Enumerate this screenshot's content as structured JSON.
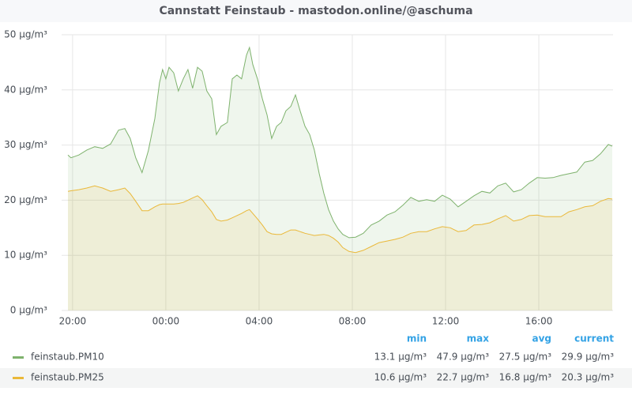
{
  "chart_data": {
    "type": "line",
    "title": "Cannstatt Feinstaub - mastodon.online/@aschuma",
    "x": [
      19.8,
      19.93,
      20.27,
      20.61,
      20.95,
      21.29,
      21.63,
      21.97,
      22.24,
      22.47,
      22.71,
      22.98,
      23.25,
      23.53,
      23.73,
      23.86,
      24.0,
      24.14,
      24.34,
      24.54,
      24.75,
      24.95,
      25.15,
      25.36,
      25.56,
      25.76,
      25.97,
      26.17,
      26.37,
      26.64,
      26.85,
      27.05,
      27.25,
      27.46,
      27.59,
      27.73,
      27.93,
      28.14,
      28.34,
      28.54,
      28.75,
      28.95,
      29.15,
      29.36,
      29.56,
      29.76,
      29.97,
      30.17,
      30.37,
      30.58,
      30.78,
      30.98,
      31.19,
      31.39,
      31.59,
      31.86,
      32.14,
      32.47,
      32.81,
      33.15,
      33.49,
      33.83,
      34.17,
      34.51,
      34.85,
      35.19,
      35.53,
      35.86,
      36.2,
      36.54,
      36.88,
      37.22,
      37.56,
      37.9,
      38.24,
      38.58,
      38.92,
      39.25,
      39.59,
      39.93,
      40.27,
      40.61,
      40.95,
      41.29,
      41.63,
      41.97,
      42.31,
      42.64,
      42.98,
      43.15
    ],
    "series": [
      {
        "name": "feinstaub.PM10",
        "color": "#7eb26d",
        "values": [
          28.2,
          27.7,
          28.2,
          29.1,
          29.7,
          29.4,
          30.2,
          32.7,
          33,
          31.2,
          27.7,
          25,
          29,
          34.8,
          41.3,
          43.7,
          42,
          44.1,
          43.1,
          39.8,
          42,
          43.7,
          40.3,
          44.1,
          43.4,
          39.8,
          38.4,
          31.9,
          33.4,
          34.1,
          42,
          42.7,
          42,
          46.3,
          47.7,
          44.6,
          42,
          38.4,
          35.5,
          31.2,
          33.4,
          34.1,
          36.2,
          37,
          39.1,
          36.2,
          33.4,
          31.9,
          29.1,
          24.8,
          21.2,
          18.3,
          16.2,
          14.8,
          13.8,
          13.2,
          13.3,
          14,
          15.5,
          16.2,
          17.3,
          17.9,
          19.1,
          20.5,
          19.8,
          20.1,
          19.8,
          20.9,
          20.2,
          18.8,
          19.8,
          20.8,
          21.6,
          21.3,
          22.6,
          23.1,
          21.5,
          21.9,
          23.1,
          24.1,
          24,
          24.1,
          24.5,
          24.8,
          25.1,
          26.9,
          27.2,
          28.4,
          30.1,
          29.8
        ],
        "legend_values": [
          "13.1 µg/m³",
          "47.9 µg/m³",
          "27.5 µg/m³",
          "29.9 µg/m³"
        ]
      },
      {
        "name": "feinstaub.PM25",
        "color": "#eab839",
        "values": [
          21.6,
          21.7,
          21.9,
          22.2,
          22.6,
          22.2,
          21.6,
          21.9,
          22.2,
          21.2,
          19.8,
          18.1,
          18.1,
          18.8,
          19.2,
          19.3,
          19.3,
          19.3,
          19.3,
          19.4,
          19.6,
          20,
          20.4,
          20.8,
          20.1,
          19,
          17.9,
          16.5,
          16.2,
          16.4,
          16.8,
          17.2,
          17.6,
          18.1,
          18.3,
          17.6,
          16.6,
          15.5,
          14.3,
          13.9,
          13.8,
          13.8,
          14.2,
          14.6,
          14.6,
          14.3,
          14,
          13.8,
          13.6,
          13.7,
          13.8,
          13.6,
          13.1,
          12.4,
          11.4,
          10.7,
          10.5,
          10.9,
          11.6,
          12.3,
          12.6,
          12.9,
          13.3,
          14,
          14.3,
          14.3,
          14.8,
          15.2,
          15,
          14.3,
          14.5,
          15.5,
          15.6,
          15.9,
          16.6,
          17.2,
          16.2,
          16.5,
          17.2,
          17.3,
          17,
          17,
          17,
          17.9,
          18.3,
          18.8,
          19,
          19.8,
          20.3,
          20.2
        ],
        "legend_values": [
          "10.6 µg/m³",
          "22.7 µg/m³",
          "16.8 µg/m³",
          "20.3 µg/m³"
        ]
      }
    ],
    "legend_columns": [
      "min",
      "max",
      "avg",
      "current"
    ],
    "xlim": [
      19.53,
      43.15
    ],
    "xticks": [
      {
        "value": 20,
        "label": "20:00"
      },
      {
        "value": 24,
        "label": "00:00"
      },
      {
        "value": 28,
        "label": "04:00"
      },
      {
        "value": 32,
        "label": "08:00"
      },
      {
        "value": 36,
        "label": "12:00"
      },
      {
        "value": 40,
        "label": "16:00"
      }
    ],
    "ylim": [
      0,
      50
    ],
    "yticks": [
      {
        "value": 0,
        "label": "0 µg/m³"
      },
      {
        "value": 10,
        "label": "10 µg/m³"
      },
      {
        "value": 20,
        "label": "20 µg/m³"
      },
      {
        "value": 30,
        "label": "30 µg/m³"
      },
      {
        "value": 40,
        "label": "40 µg/m³"
      },
      {
        "value": 50,
        "label": "50 µg/m³"
      }
    ],
    "grid": true
  }
}
